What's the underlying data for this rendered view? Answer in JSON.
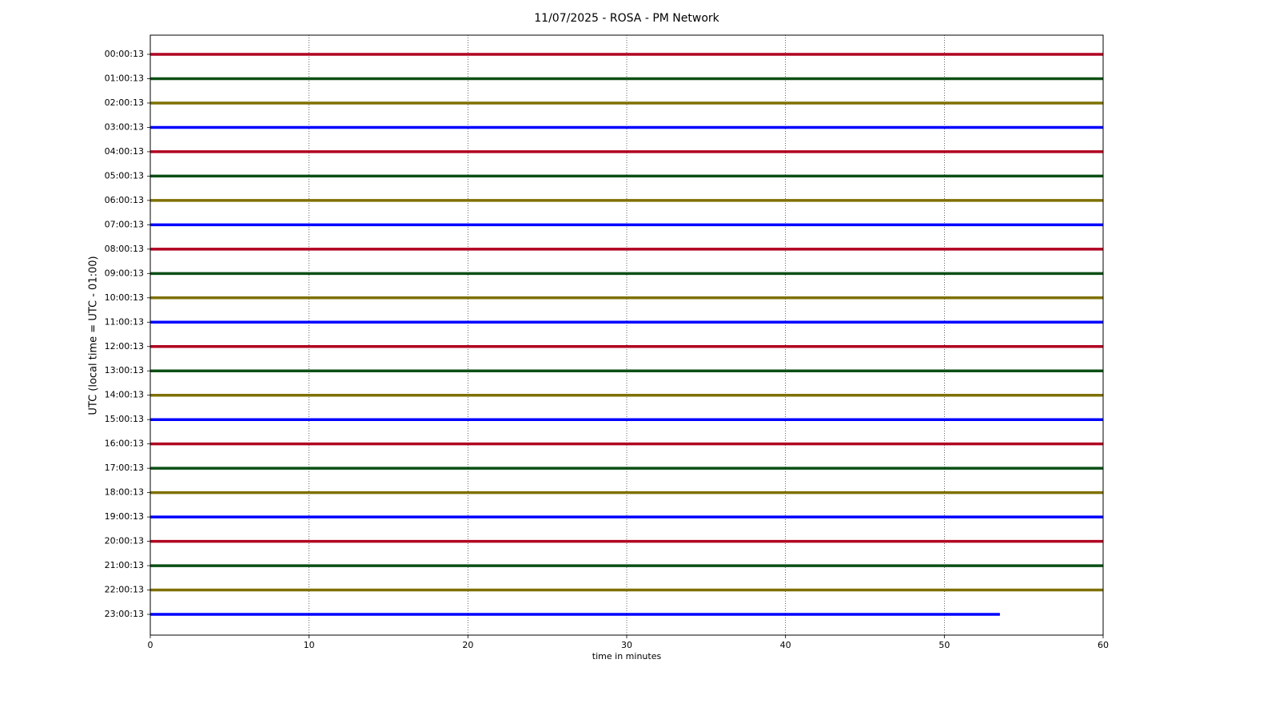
{
  "chart_data": {
    "type": "helicorder",
    "title": "11/07/2025 - ROSA - PM Network",
    "xlabel": "time in minutes",
    "ylabel": "UTC (local time = UTC - 01:00)",
    "xlim": [
      0,
      60
    ],
    "xticks": [
      0,
      10,
      20,
      30,
      40,
      50,
      60
    ],
    "grid": true,
    "colors": [
      "#b00020",
      "#0a4f14",
      "#7f7000",
      "#0000ff"
    ],
    "categories": [
      "00:00:13",
      "01:00:13",
      "02:00:13",
      "03:00:13",
      "04:00:13",
      "05:00:13",
      "06:00:13",
      "07:00:13",
      "08:00:13",
      "09:00:13",
      "10:00:13",
      "11:00:13",
      "12:00:13",
      "13:00:13",
      "14:00:13",
      "15:00:13",
      "16:00:13",
      "17:00:13",
      "18:00:13",
      "19:00:13",
      "20:00:13",
      "21:00:13",
      "22:00:13",
      "23:00:13"
    ],
    "values": [
      60,
      60,
      60,
      60,
      60,
      60,
      60,
      60,
      60,
      60,
      60,
      60,
      60,
      60,
      60,
      60,
      60,
      60,
      60,
      60,
      60,
      60,
      60,
      53.5
    ]
  }
}
